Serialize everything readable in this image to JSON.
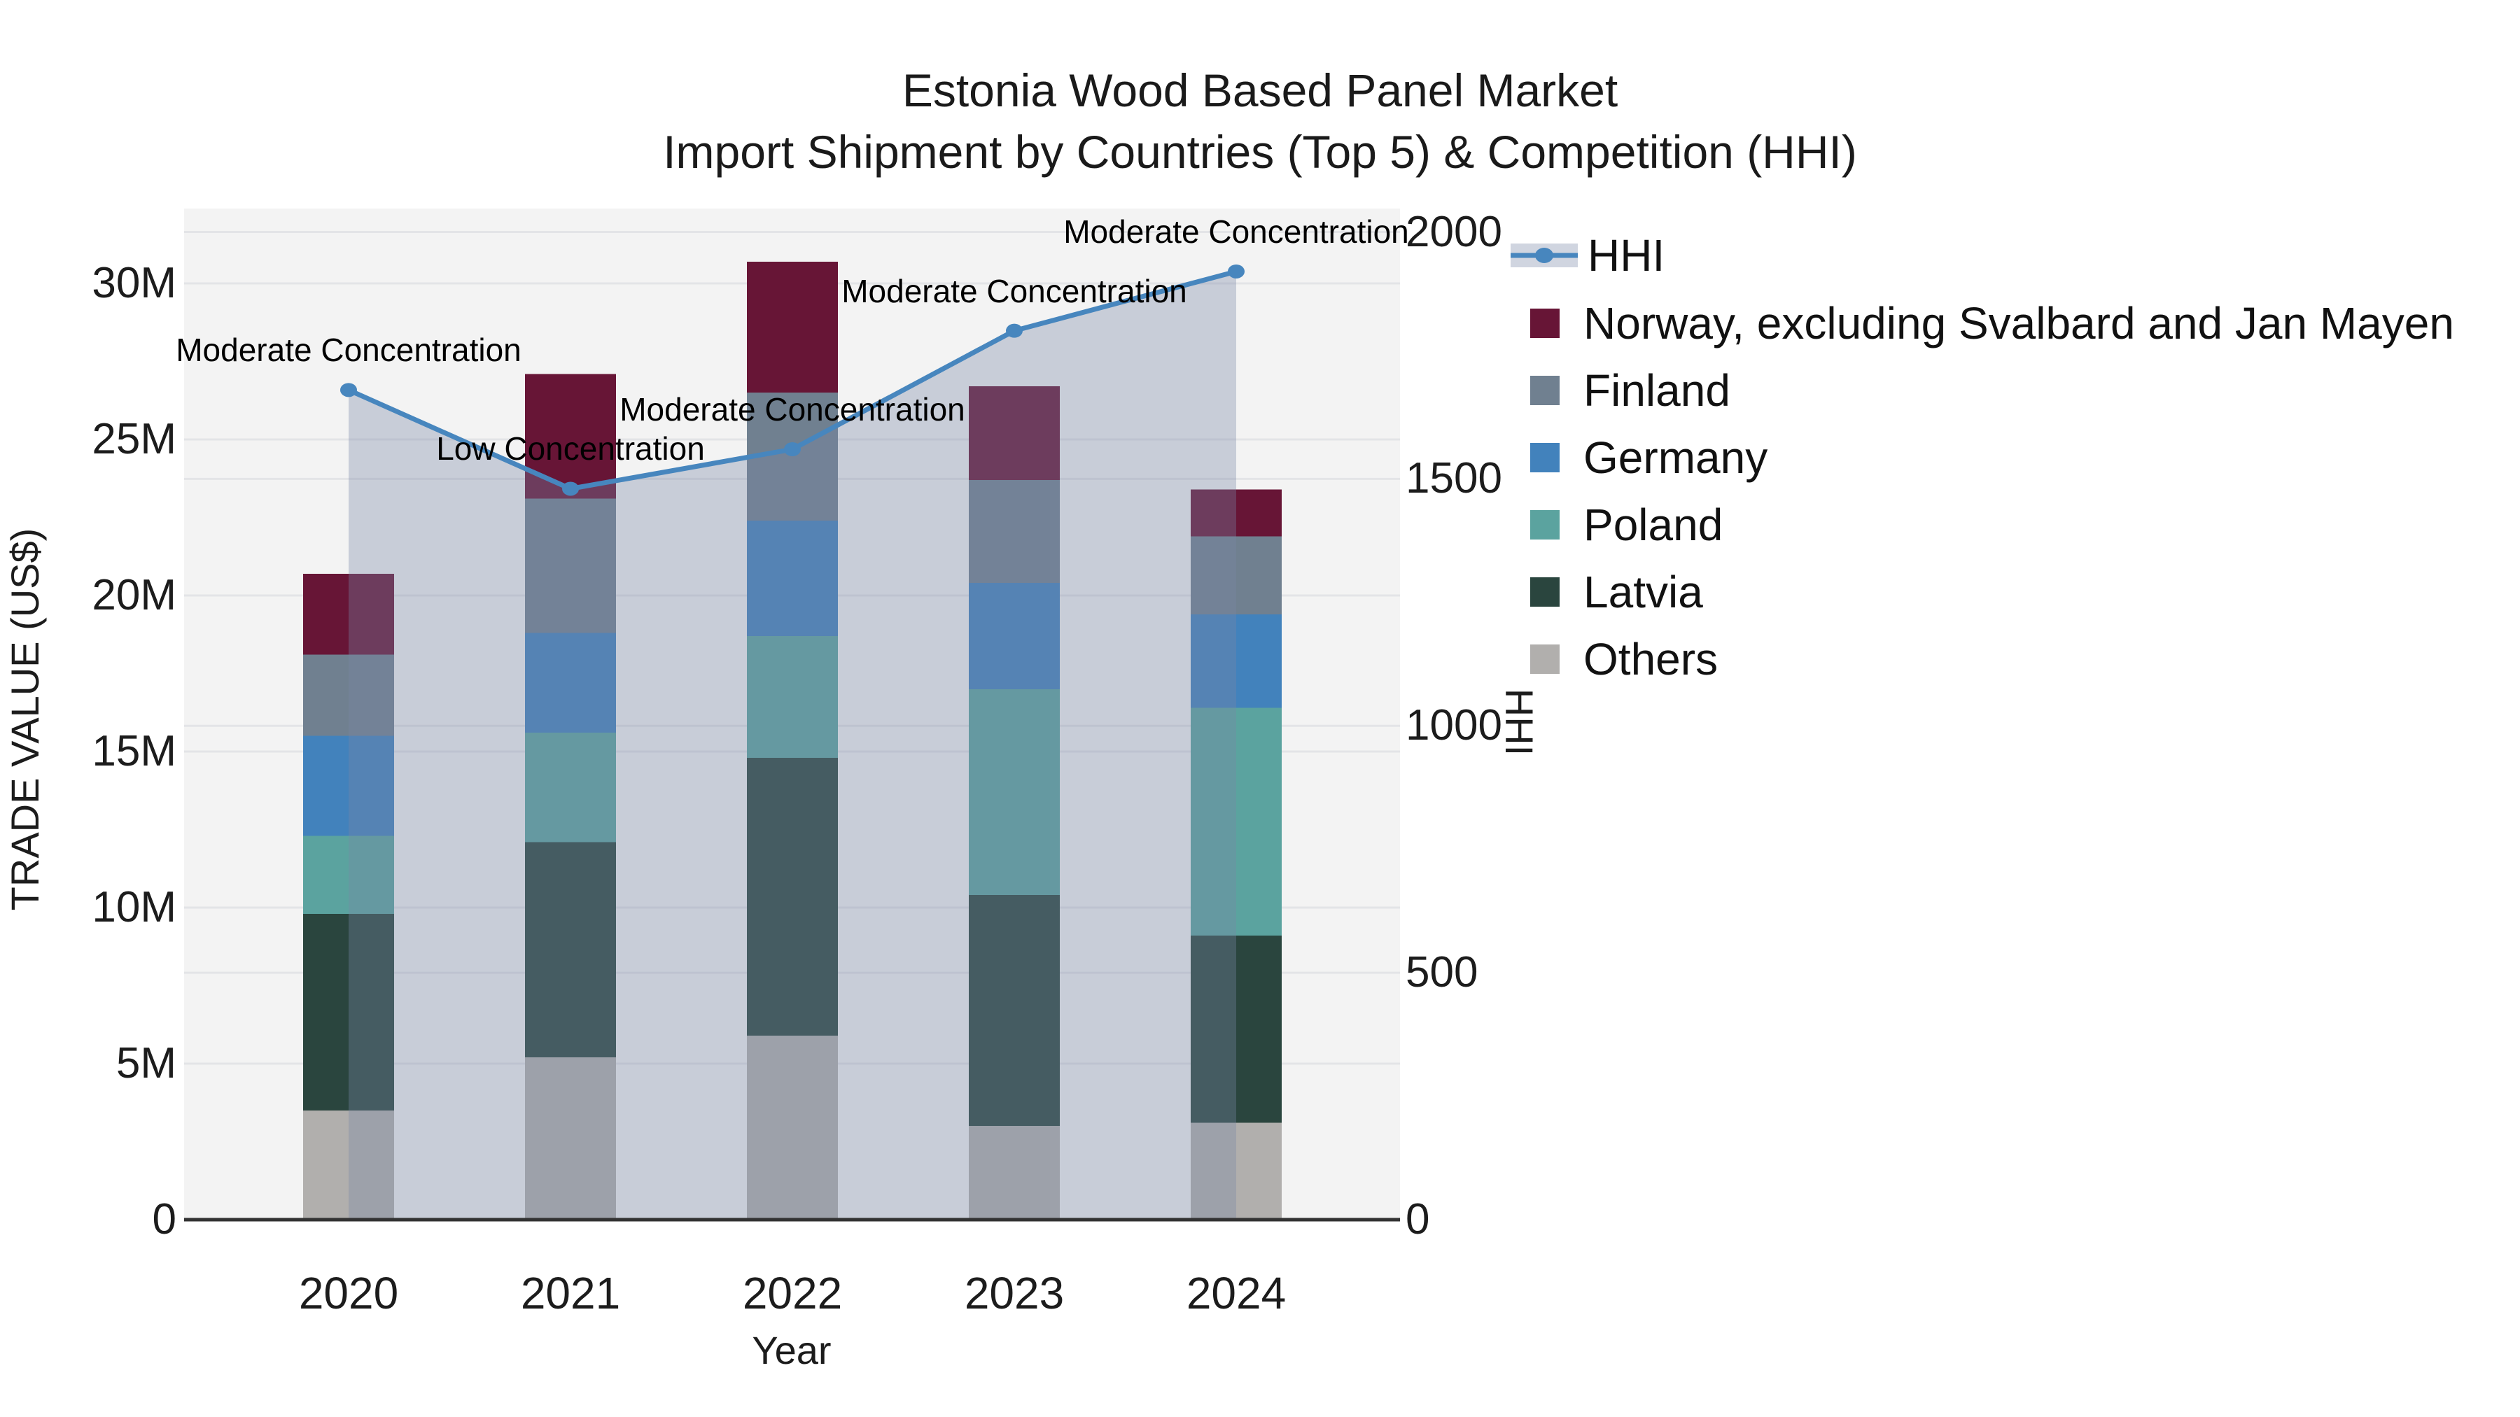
{
  "title": {
    "line1": "Estonia Wood Based Panel Market",
    "line2": "Import Shipment by Countries (Top 5) & Competition (HHI)"
  },
  "axes": {
    "x": {
      "label": "Year",
      "ticks": [
        "2020",
        "2021",
        "2022",
        "2023",
        "2024"
      ]
    },
    "y_left": {
      "label": "TRADE VALUE (US$)",
      "ticks": [
        "0",
        "5M",
        "10M",
        "15M",
        "20M",
        "25M",
        "30M"
      ]
    },
    "y_right": {
      "label": "HHI",
      "ticks": [
        "0",
        "500",
        "1000",
        "1500",
        "2000"
      ]
    }
  },
  "legend": {
    "position": "right",
    "items": [
      {
        "label": "HHI",
        "type": "line"
      },
      {
        "label": "Norway, excluding Svalbard and Jan Mayen",
        "type": "swatch",
        "series": "norway"
      },
      {
        "label": "Finland",
        "type": "swatch",
        "series": "finland"
      },
      {
        "label": "Germany",
        "type": "swatch",
        "series": "germany"
      },
      {
        "label": "Poland",
        "type": "swatch",
        "series": "poland"
      },
      {
        "label": "Latvia",
        "type": "swatch",
        "series": "latvia"
      },
      {
        "label": "Others",
        "type": "swatch",
        "series": "others"
      }
    ]
  },
  "colors": {
    "norway": "#671536",
    "finland": "#708090",
    "germany": "#4282BC",
    "poland": "#5BA39F",
    "latvia": "#2A453E",
    "others": "#B1AFAD",
    "hhi_line": "#4786BE",
    "hhi_fill": "rgba(120,136,166,0.35)",
    "hhi_band_legend": "#D0D5E0",
    "plot_bg": "#F3F3F3",
    "grid": "#E3E4E7",
    "spine": "#333333"
  },
  "chart_data": {
    "type": [
      "bar",
      "line"
    ],
    "title": "Estonia Wood Based Panel Market — Import Shipment by Countries (Top 5) & Competition (HHI)",
    "categories": [
      "2020",
      "2021",
      "2022",
      "2023",
      "2024"
    ],
    "bar_unit": "million US$",
    "stack_order_bottom_to_top": [
      "others",
      "latvia",
      "poland",
      "germany",
      "finland",
      "norway"
    ],
    "series": [
      {
        "id": "norway",
        "name": "Norway, excluding Svalbard and Jan Mayen",
        "values": [
          2.6,
          4.0,
          4.2,
          3.0,
          1.5
        ]
      },
      {
        "id": "finland",
        "name": "Finland",
        "values": [
          2.6,
          4.3,
          4.1,
          3.3,
          2.5
        ]
      },
      {
        "id": "germany",
        "name": "Germany",
        "values": [
          3.2,
          3.2,
          3.7,
          3.4,
          3.0
        ]
      },
      {
        "id": "poland",
        "name": "Poland",
        "values": [
          2.5,
          3.5,
          3.9,
          6.6,
          7.3
        ]
      },
      {
        "id": "latvia",
        "name": "Latvia",
        "values": [
          6.3,
          6.9,
          8.9,
          7.4,
          6.0
        ]
      },
      {
        "id": "others",
        "name": "Others",
        "values": [
          3.5,
          5.2,
          5.9,
          3.0,
          3.1
        ]
      }
    ],
    "bar_totals": [
      20.7,
      27.1,
      30.7,
      26.7,
      23.4
    ],
    "line_series": {
      "name": "HHI",
      "values": [
        1680,
        1480,
        1560,
        1800,
        1920
      ],
      "filled_area": true
    },
    "annotations": [
      {
        "category": "2020",
        "text": "Moderate Concentration"
      },
      {
        "category": "2021",
        "text": "Low Concentration"
      },
      {
        "category": "2022",
        "text": "Moderate Concentration"
      },
      {
        "category": "2023",
        "text": "Moderate Concentration"
      },
      {
        "category": "2024",
        "text": "Moderate Concentration"
      }
    ],
    "xlabel": "Year",
    "ylabel_left": "TRADE VALUE (US$)",
    "ylabel_right": "HHI",
    "ylim_left": [
      0,
      32.4
    ],
    "ylim_right": [
      0,
      2048
    ],
    "grid": true,
    "legend_position": "right"
  }
}
